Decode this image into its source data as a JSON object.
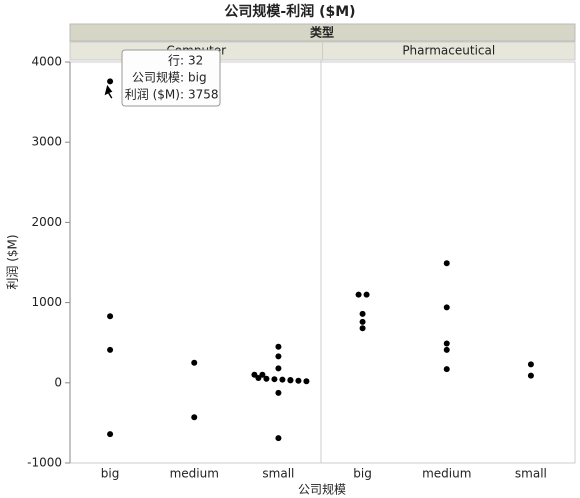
{
  "chart_data": {
    "type": "scatter",
    "title": "公司规模-利润 ($M)",
    "facet_title": "类型",
    "x_label": "公司规模",
    "y_label": "利润 ($M)",
    "color": "#000000",
    "ylim": [
      -1000,
      4000
    ],
    "yticks": [
      -1000,
      0,
      1000,
      2000,
      3000,
      4000
    ],
    "panels": [
      {
        "name": "Computer",
        "categories": [
          "big",
          "medium",
          "small"
        ],
        "groups": [
          [
            3758,
            830,
            410,
            -640
          ],
          [
            250,
            -430
          ],
          [
            450,
            330,
            180,
            100,
            100,
            60,
            50,
            45,
            40,
            35,
            30,
            25,
            20,
            -125,
            -690
          ]
        ]
      },
      {
        "name": "Pharmaceutical",
        "categories": [
          "big",
          "medium",
          "small"
        ],
        "groups": [
          [
            1100,
            1100,
            860,
            760,
            680
          ],
          [
            1490,
            940,
            490,
            410,
            170
          ],
          [
            230,
            90
          ]
        ]
      }
    ],
    "tooltip": [
      {
        "label": "行:",
        "value": "32"
      },
      {
        "label": "公司规模:",
        "value": "big"
      },
      {
        "label": "利润 ($M):",
        "value": "3758"
      }
    ]
  }
}
